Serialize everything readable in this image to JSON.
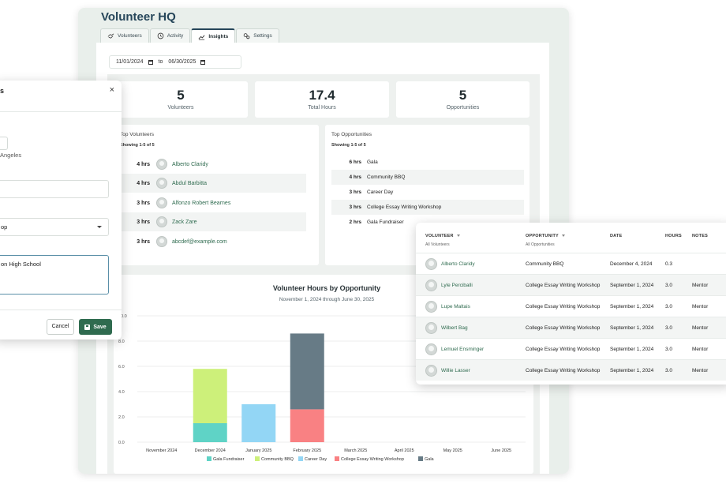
{
  "app": {
    "title": "Volunteer HQ"
  },
  "tabs": [
    {
      "label": "Volunteers",
      "icon": "handshake-icon"
    },
    {
      "label": "Activity",
      "icon": "clock-icon"
    },
    {
      "label": "Insights",
      "icon": "chart-icon",
      "active": true
    },
    {
      "label": "Settings",
      "icon": "gears-icon"
    }
  ],
  "date_range": {
    "start": "11/01/2024",
    "separator": "to",
    "end": "06/30/2025"
  },
  "stats": [
    {
      "value": "5",
      "label": "Volunteers"
    },
    {
      "value": "17.4",
      "label": "Total Hours"
    },
    {
      "value": "5",
      "label": "Opportunities"
    }
  ],
  "top_volunteers": {
    "title": "Top Volunteers",
    "showing": "Showing 1-5 of 5",
    "rows": [
      {
        "hours": "4 hrs",
        "name": "Alberto Claridy"
      },
      {
        "hours": "4 hrs",
        "name": "Abdul Barbitta"
      },
      {
        "hours": "3 hrs",
        "name": "Alfonzo Robert Bearnes"
      },
      {
        "hours": "3 hrs",
        "name": "Zack Zare"
      },
      {
        "hours": "3 hrs",
        "name": "abcdef@example.com"
      }
    ]
  },
  "top_opportunities": {
    "title": "Top Opportunities",
    "showing": "Showing 1-5 of 5",
    "rows": [
      {
        "hours": "6 hrs",
        "name": "Gala"
      },
      {
        "hours": "4 hrs",
        "name": "Community BBQ"
      },
      {
        "hours": "3 hrs",
        "name": "Career Day"
      },
      {
        "hours": "3 hrs",
        "name": "College Essay Writing Workshop"
      },
      {
        "hours": "2 hrs",
        "name": "Gala Fundraiser"
      }
    ]
  },
  "chart_data": {
    "type": "bar",
    "stacked": true,
    "title": "Volunteer Hours by Opportunity",
    "subtitle": "November 1, 2024 through June 30, 2025",
    "categories": [
      "November 2024",
      "December 2024",
      "January 2025",
      "February 2025",
      "March 2025",
      "April 2025",
      "May 2025",
      "June 2025"
    ],
    "ylim": [
      0,
      10
    ],
    "yticks": [
      "0.0",
      "2.0",
      "4.0",
      "6.0",
      "8.0",
      "10.0"
    ],
    "grid": true,
    "legend_position": "bottom",
    "series": [
      {
        "name": "Gala Fundraiser",
        "color": "#5fd3c6",
        "values": [
          0,
          1.5,
          0,
          0,
          0,
          0,
          0,
          0
        ]
      },
      {
        "name": "Community BBQ",
        "color": "#cdf07a",
        "values": [
          0,
          4.3,
          0,
          0,
          0,
          0,
          0,
          0
        ]
      },
      {
        "name": "Career Day",
        "color": "#93d6f5",
        "values": [
          0,
          0,
          3.0,
          0,
          0,
          0,
          0,
          0
        ]
      },
      {
        "name": "College Essay Writing Workshop",
        "color": "#f98183",
        "values": [
          0,
          0,
          0,
          2.6,
          0,
          0,
          0,
          0
        ]
      },
      {
        "name": "Gala",
        "color": "#677b86",
        "values": [
          0,
          0,
          0,
          6.0,
          0,
          0,
          0,
          0
        ]
      }
    ]
  },
  "modal": {
    "title": "s",
    "close": "×",
    "timezone": "Angeles",
    "select_value": "op",
    "textarea_value": "on High School",
    "cancel": "Cancel",
    "save": "Save"
  },
  "table": {
    "headers": [
      {
        "label": "VOLUNTEER",
        "sub": "All Volunteers",
        "filter": true
      },
      {
        "label": "OPPORTUNITY",
        "sub": "All Opportunities",
        "filter": true
      },
      {
        "label": "DATE",
        "sub": "",
        "filter": false
      },
      {
        "label": "HOURS",
        "sub": "",
        "filter": false
      },
      {
        "label": "NOTES",
        "sub": "",
        "filter": false
      }
    ],
    "rows": [
      {
        "volunteer": "Alberto Claridy",
        "opportunity": "Community BBQ",
        "date": "December 4, 2024",
        "hours": "0.3",
        "notes": ""
      },
      {
        "volunteer": "Lyle Perciballi",
        "opportunity": "College Essay Writing Workshop",
        "date": "September 1, 2024",
        "hours": "3.0",
        "notes": "Mentor"
      },
      {
        "volunteer": "Lupe Maltais",
        "opportunity": "College Essay Writing Workshop",
        "date": "September 1, 2024",
        "hours": "3.0",
        "notes": "Mentor"
      },
      {
        "volunteer": "Wilbert Bag",
        "opportunity": "College Essay Writing Workshop",
        "date": "September 1, 2024",
        "hours": "3.0",
        "notes": "Mentor"
      },
      {
        "volunteer": "Lemuel Ensminger",
        "opportunity": "College Essay Writing Workshop",
        "date": "September 1, 2024",
        "hours": "3.0",
        "notes": "Mentor"
      },
      {
        "volunteer": "Willie Lasser",
        "opportunity": "College Essay Writing Workshop",
        "date": "September 1, 2024",
        "hours": "3.0",
        "notes": "Mentor"
      }
    ]
  }
}
